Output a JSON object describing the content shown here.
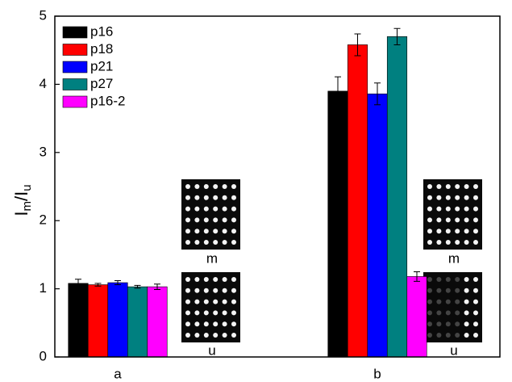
{
  "chart_data": {
    "type": "bar",
    "ylabel": [
      "I",
      "m",
      "/I",
      "u"
    ],
    "categories": [
      "a",
      "b"
    ],
    "series": [
      {
        "name": "p16",
        "color": "#000000",
        "values": [
          1.08,
          3.9
        ],
        "errors": [
          0.06,
          0.21
        ]
      },
      {
        "name": "p18",
        "color": "#ff0000",
        "values": [
          1.06,
          4.58
        ],
        "errors": [
          0.02,
          0.16
        ]
      },
      {
        "name": "p21",
        "color": "#0000ff",
        "values": [
          1.09,
          3.86
        ],
        "errors": [
          0.03,
          0.16
        ]
      },
      {
        "name": "p27",
        "color": "#008080",
        "values": [
          1.03,
          4.7
        ],
        "errors": [
          0.02,
          0.12
        ]
      },
      {
        "name": "p16-2",
        "color": "#ff00ff",
        "values": [
          1.03,
          1.18
        ],
        "errors": [
          0.04,
          0.07
        ]
      }
    ],
    "ylim": [
      0,
      5
    ],
    "yticks": [
      0,
      1,
      2,
      3,
      4,
      5
    ],
    "legend": "top-left",
    "annotations": [
      "m",
      "u",
      "m",
      "u"
    ]
  }
}
